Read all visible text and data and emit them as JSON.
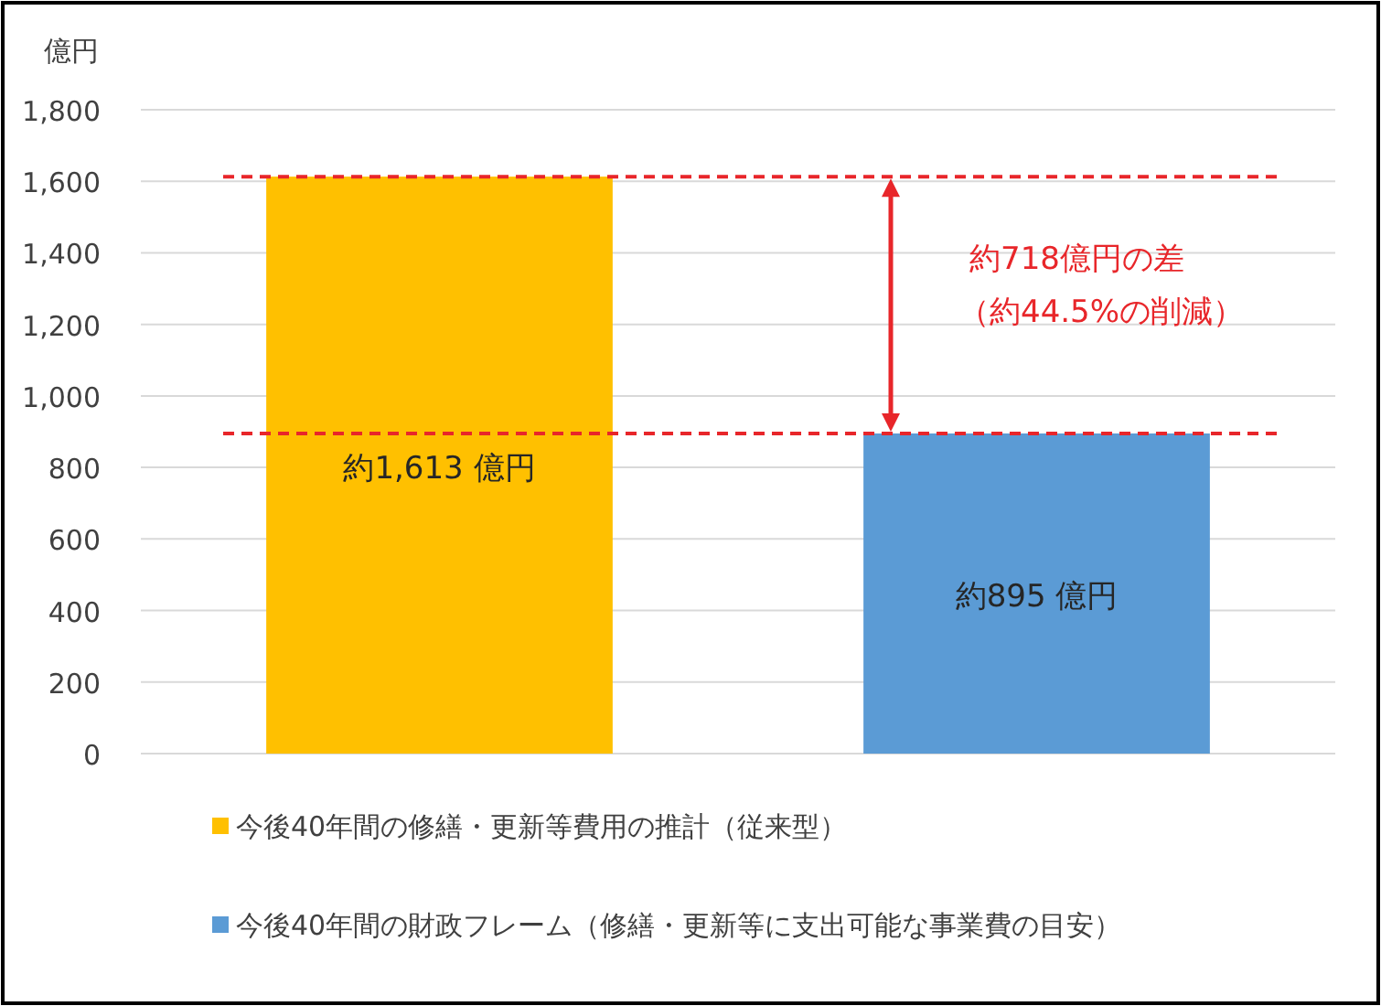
{
  "chart_data": {
    "type": "bar",
    "ylabel": "億円",
    "categories": [
      null,
      null
    ],
    "series": [
      {
        "name": "今後40年間の修繕・更新等費用の推計（従来型）",
        "color": "#ffc000",
        "values": [
          1613,
          null
        ],
        "value_labels": [
          "約1,613 億円",
          null
        ]
      },
      {
        "name": "今後40年間の財政フレーム（修繕・更新等に支出可能な事業費の目安）",
        "color": "#5b9bd5",
        "values": [
          null,
          895
        ],
        "value_labels": [
          null,
          "約895 億円"
        ]
      }
    ],
    "ylim": [
      0,
      1800
    ],
    "yticks": [
      0,
      200,
      400,
      600,
      800,
      {
        "value": 1000,
        "label": "1,000"
      },
      {
        "value": 1200,
        "label": "1,200"
      },
      {
        "value": 1400,
        "label": "1,400"
      },
      {
        "value": 1600,
        "label": "1,600"
      },
      {
        "value": 1800,
        "label": "1,800"
      }
    ],
    "grid": "y",
    "legend": "bottom",
    "ref_lines": [
      {
        "axis": "y",
        "value": 1613,
        "color": "#e8262a",
        "line_style": "dashed"
      },
      {
        "axis": "y",
        "value": 895,
        "color": "#e8262a",
        "line_style": "dashed"
      }
    ],
    "annotations": [
      "約718億円の差",
      "（約44.5%の削減）"
    ]
  }
}
